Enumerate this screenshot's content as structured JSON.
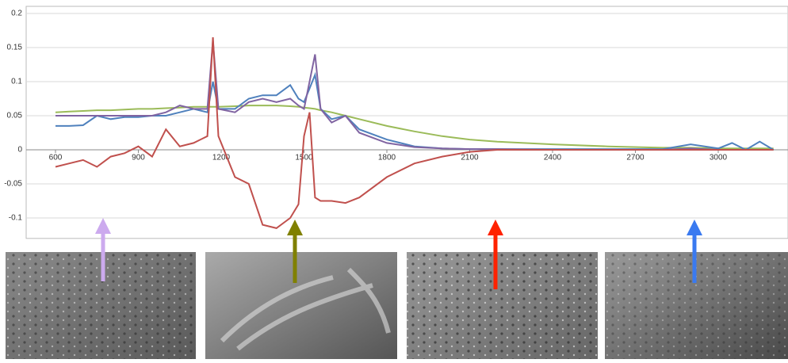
{
  "chart_data": {
    "type": "line",
    "x": [
      600,
      650,
      700,
      750,
      800,
      850,
      900,
      950,
      1000,
      1050,
      1100,
      1150,
      1170,
      1190,
      1250,
      1300,
      1350,
      1400,
      1450,
      1480,
      1500,
      1520,
      1540,
      1560,
      1600,
      1650,
      1700,
      1800,
      1900,
      2000,
      2100,
      2200,
      2400,
      2600,
      2800,
      2900,
      3000,
      3050,
      3100,
      3150,
      3200
    ],
    "series": [
      {
        "color": "#9bbb59",
        "values": [
          0.055,
          0.056,
          0.057,
          0.058,
          0.058,
          0.059,
          0.06,
          0.06,
          0.061,
          0.062,
          0.063,
          0.063,
          0.063,
          0.063,
          0.064,
          0.065,
          0.065,
          0.065,
          0.064,
          0.063,
          0.062,
          0.061,
          0.06,
          0.058,
          0.055,
          0.05,
          0.045,
          0.035,
          0.027,
          0.02,
          0.015,
          0.012,
          0.008,
          0.005,
          0.003,
          0.003,
          0.002,
          0.002,
          0.002,
          0.002,
          0.002
        ]
      },
      {
        "color": "#4f81bd",
        "values": [
          0.035,
          0.035,
          0.036,
          0.05,
          0.045,
          0.048,
          0.048,
          0.05,
          0.05,
          0.055,
          0.06,
          0.055,
          0.1,
          0.06,
          0.06,
          0.075,
          0.08,
          0.08,
          0.095,
          0.075,
          0.07,
          0.09,
          0.11,
          0.06,
          0.045,
          0.05,
          0.03,
          0.015,
          0.005,
          0.002,
          0.001,
          0.001,
          0.001,
          0.001,
          0.001,
          0.008,
          0.002,
          0.01,
          0,
          0.012,
          0
        ]
      },
      {
        "color": "#8064a2",
        "values": [
          0.05,
          0.05,
          0.05,
          0.05,
          0.05,
          0.05,
          0.05,
          0.05,
          0.055,
          0.065,
          0.06,
          0.06,
          0.16,
          0.06,
          0.055,
          0.07,
          0.075,
          0.07,
          0.075,
          0.065,
          0.06,
          0.1,
          0.14,
          0.06,
          0.04,
          0.05,
          0.025,
          0.01,
          0.004,
          0.002,
          0.001,
          0.001,
          0,
          0,
          0,
          0.002,
          0,
          0,
          0,
          0,
          0
        ]
      },
      {
        "color": "#c0504d",
        "values": [
          -0.025,
          -0.02,
          -0.015,
          -0.025,
          -0.01,
          -0.005,
          0.005,
          -0.01,
          0.03,
          0.005,
          0.01,
          0.02,
          0.165,
          0.02,
          -0.04,
          -0.05,
          -0.11,
          -0.115,
          -0.1,
          -0.08,
          0.02,
          0.055,
          -0.07,
          -0.075,
          -0.075,
          -0.078,
          -0.07,
          -0.04,
          -0.02,
          -0.01,
          -0.003,
          0,
          0,
          0,
          0,
          0,
          0,
          0,
          0,
          0,
          0
        ]
      }
    ],
    "xlim": [
      600,
      3240
    ],
    "xticks": [
      600,
      900,
      1200,
      1500,
      1800,
      2100,
      2400,
      2700,
      3000
    ],
    "ylim": [
      -0.13,
      0.2
    ],
    "yticks": [
      0.2,
      0.15,
      0.1,
      0.05,
      0,
      -0.05,
      -0.1
    ],
    "grid": true
  }
}
